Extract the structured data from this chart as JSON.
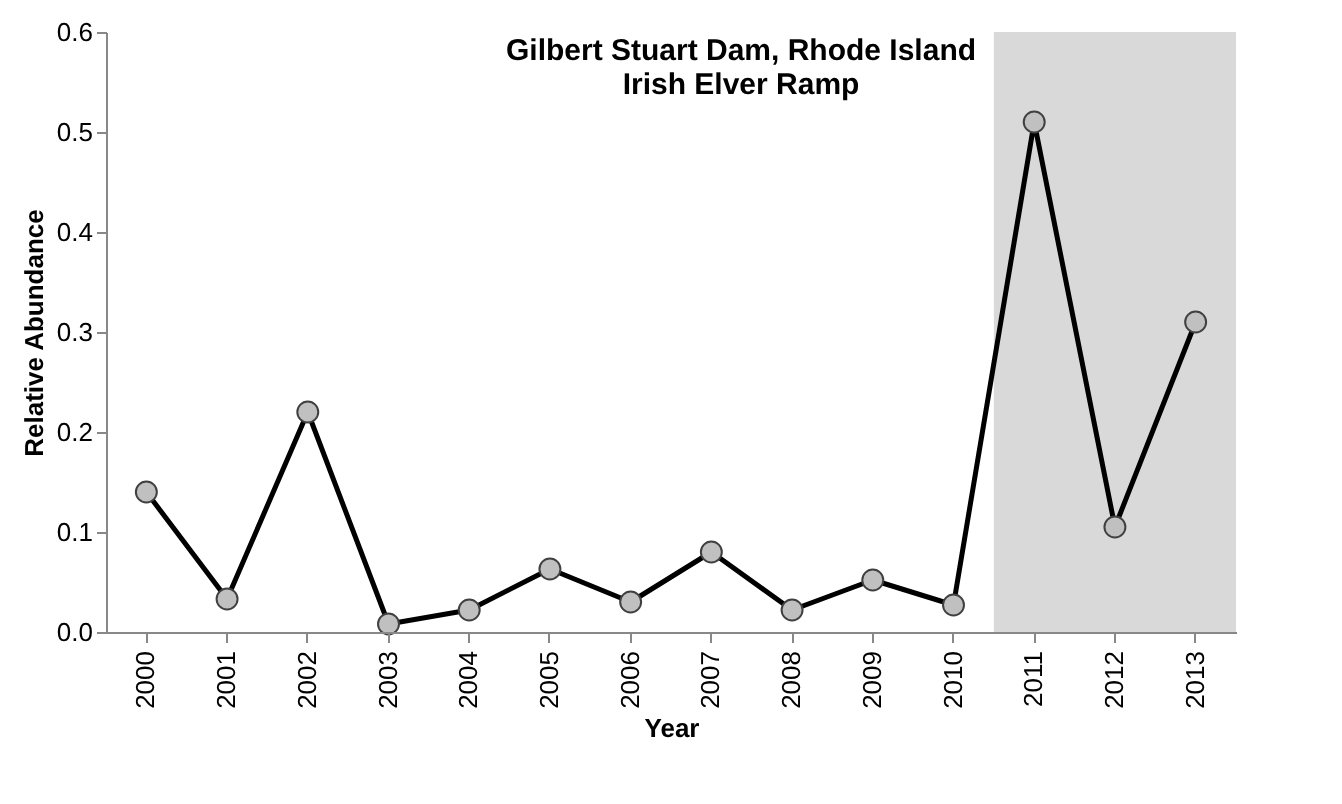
{
  "chart_data": {
    "type": "line",
    "title": "Gilbert Stuart Dam, Rhode Island",
    "subtitle": "Irish Elver Ramp",
    "xlabel": "Year",
    "ylabel": "Relative Abundance",
    "categories": [
      "2000",
      "2001",
      "2002",
      "2003",
      "2004",
      "2005",
      "2006",
      "2007",
      "2008",
      "2009",
      "2010",
      "2011",
      "2012",
      "2013"
    ],
    "series": [
      {
        "color": "#000000",
        "values": [
          0.14,
          0.033,
          0.22,
          0.008,
          0.022,
          0.063,
          0.03,
          0.08,
          0.022,
          0.052,
          0.027,
          0.51,
          0.105,
          0.31
        ]
      }
    ],
    "ylim": [
      0,
      0.6
    ],
    "yticks": [
      {
        "value": 0,
        "label": "0.0"
      },
      {
        "value": 0.1,
        "label": "0.1"
      },
      {
        "value": 0.2,
        "label": "0.2"
      },
      {
        "value": 0.3,
        "label": "0.3"
      },
      {
        "value": 0.4,
        "label": "0.4"
      },
      {
        "value": 0.5,
        "label": "0.5"
      },
      {
        "value": 0.6,
        "label": "0.6"
      }
    ],
    "bands": [
      {
        "axis": "x",
        "from": "2011",
        "to": "2013",
        "color": "#d9d9d9"
      }
    ],
    "marker": "circle",
    "grid": false
  }
}
